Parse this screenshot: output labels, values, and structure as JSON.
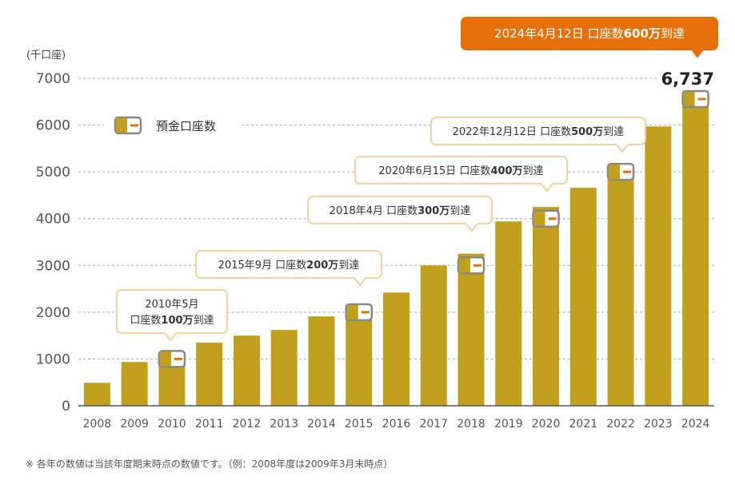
{
  "chart_data": {
    "type": "bar",
    "unit_label": "(千口座)",
    "categories": [
      "2008",
      "2009",
      "2010",
      "2011",
      "2012",
      "2013",
      "2014",
      "2015",
      "2016",
      "2017",
      "2018",
      "2019",
      "2020",
      "2021",
      "2022",
      "2023",
      "2024"
    ],
    "values": [
      490,
      935,
      1050,
      1350,
      1500,
      1620,
      1910,
      2050,
      2420,
      3000,
      3250,
      3940,
      4250,
      4660,
      5100,
      5970,
      6737
    ],
    "series": [
      {
        "name": "預金口座数",
        "color": "#c0a01c"
      }
    ],
    "yticks": [
      0,
      1000,
      2000,
      3000,
      4000,
      5000,
      6000,
      7000
    ],
    "ylim": [
      0,
      7000
    ],
    "grid": true,
    "legend": {
      "label": "預金口座数",
      "placement": "top-left"
    },
    "final_value_label": "6,737",
    "milestones": [
      {
        "year": "2010",
        "lines": [
          [
            "2010年5月",
            ""
          ],
          [
            "口座数",
            "100万",
            "到達"
          ]
        ]
      },
      {
        "year": "2015",
        "lines": [
          [
            "2015年9月 口座数",
            "200万",
            "到達"
          ]
        ]
      },
      {
        "year": "2018",
        "lines": [
          [
            "2018年4月 口座数",
            "300万",
            "到達"
          ]
        ]
      },
      {
        "year": "2020",
        "lines": [
          [
            "2020年6月15日 口座数",
            "400万",
            "到達"
          ]
        ]
      },
      {
        "year": "2022",
        "lines": [
          [
            "2022年12月12日 口座数",
            "500万",
            "到達"
          ]
        ]
      },
      {
        "year": "2024",
        "lines": [
          [
            "2024年4月12日 口座数",
            "600万",
            "到達"
          ]
        ],
        "highlight": true
      }
    ],
    "colors": {
      "bar": "#c0a01c",
      "accent": "#e8700a",
      "bubble_border": "#f8cf9b",
      "marker_border": "#888888"
    }
  },
  "footnote": "※ 各年の数値は当該年度期末時点の数値です。（例：2008年度は2009年3月末時点）"
}
